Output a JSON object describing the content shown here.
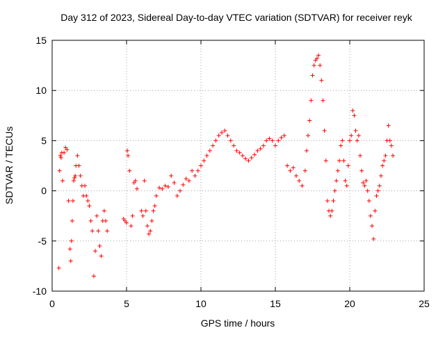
{
  "chart_data": {
    "type": "scatter",
    "title": "Day 312 of 2023, Sidereal Day-to-day VTEC variation (SDTVAR) for receiver reyk",
    "xlabel": "GPS time / hours",
    "ylabel": "SDTVAR / TECUs",
    "xlim": [
      0,
      25
    ],
    "ylim": [
      -10,
      15
    ],
    "xticks": [
      0,
      5,
      10,
      15,
      20,
      25
    ],
    "yticks": [
      -10,
      -5,
      0,
      5,
      10,
      15
    ],
    "xtick_labels": [
      "0",
      "5",
      "10",
      "15",
      "20",
      "25"
    ],
    "ytick_labels": [
      "-10",
      "-5",
      "0",
      "5",
      "10",
      "15"
    ],
    "grid": true,
    "marker": "+",
    "marker_color": "#ff0000",
    "series": [
      {
        "name": "SDTVAR",
        "x": [
          0.45,
          0.5,
          0.55,
          0.6,
          0.65,
          0.7,
          0.8,
          0.9,
          1.0,
          1.1,
          1.2,
          1.25,
          1.3,
          1.35,
          1.4,
          1.45,
          1.5,
          1.55,
          1.6,
          1.7,
          1.8,
          1.9,
          2.0,
          2.1,
          2.2,
          2.3,
          2.4,
          2.5,
          2.6,
          2.7,
          2.8,
          2.9,
          3.0,
          3.1,
          3.2,
          3.3,
          3.4,
          3.5,
          3.6,
          3.7,
          4.8,
          4.9,
          5.0,
          5.05,
          5.1,
          5.2,
          5.3,
          5.4,
          5.5,
          5.6,
          5.7,
          6.0,
          6.1,
          6.2,
          6.3,
          6.4,
          6.5,
          6.6,
          6.7,
          6.8,
          6.9,
          7.0,
          7.2,
          7.4,
          7.6,
          7.8,
          8.0,
          8.2,
          8.4,
          8.6,
          8.8,
          9.0,
          9.2,
          9.4,
          9.6,
          9.8,
          10.0,
          10.2,
          10.4,
          10.6,
          10.8,
          11.0,
          11.2,
          11.4,
          11.6,
          11.8,
          12.0,
          12.2,
          12.4,
          12.6,
          12.8,
          13.0,
          13.2,
          13.4,
          13.6,
          13.8,
          14.0,
          14.2,
          14.4,
          14.6,
          14.8,
          15.0,
          15.2,
          15.4,
          15.6,
          15.8,
          16.0,
          16.2,
          16.4,
          16.6,
          16.8,
          17.0,
          17.1,
          17.2,
          17.3,
          17.4,
          17.5,
          17.6,
          17.7,
          17.8,
          17.9,
          18.0,
          18.1,
          18.2,
          18.3,
          18.4,
          18.5,
          18.6,
          18.7,
          18.8,
          18.9,
          19.0,
          19.1,
          19.2,
          19.3,
          19.4,
          19.5,
          19.6,
          19.7,
          19.8,
          19.9,
          20.0,
          20.1,
          20.2,
          20.3,
          20.4,
          20.5,
          20.6,
          20.7,
          20.8,
          20.9,
          21.0,
          21.1,
          21.2,
          21.3,
          21.4,
          21.5,
          21.6,
          21.7,
          21.8,
          21.9,
          22.0,
          22.1,
          22.2,
          22.3,
          22.4,
          22.5,
          22.6,
          22.7,
          22.8,
          22.9
        ],
        "y": [
          -7.7,
          2.0,
          3.5,
          3.3,
          3.8,
          1.0,
          3.8,
          4.3,
          4.1,
          -1.0,
          -5.8,
          -7.0,
          -5.0,
          -3.0,
          -1.0,
          1.0,
          1.3,
          1.5,
          2.5,
          3.5,
          2.5,
          1.5,
          0.5,
          -0.5,
          0.5,
          -0.5,
          -1.0,
          -1.5,
          -3.0,
          -4.0,
          -8.5,
          -6.0,
          -2.5,
          -4.0,
          -5.5,
          -6.5,
          -3.0,
          -2.0,
          -3.0,
          -4.0,
          -2.8,
          -3.0,
          -3.2,
          4.0,
          3.5,
          2.0,
          -3.5,
          -2.5,
          0.8,
          1.0,
          0.2,
          -2.0,
          -2.5,
          1.0,
          -2.0,
          -3.5,
          -4.3,
          -4.0,
          -3.0,
          -2.0,
          -1.5,
          -0.5,
          0.3,
          0.2,
          0.5,
          0.4,
          1.5,
          0.8,
          -0.5,
          0.0,
          0.6,
          1.2,
          1.0,
          2.0,
          1.5,
          2.0,
          2.5,
          3.0,
          3.5,
          4.0,
          4.5,
          5.0,
          5.5,
          5.8,
          6.0,
          5.5,
          5.0,
          4.5,
          4.0,
          3.8,
          3.5,
          3.2,
          3.0,
          3.3,
          3.6,
          4.0,
          4.2,
          4.5,
          5.0,
          5.2,
          5.0,
          4.5,
          5.0,
          5.3,
          5.5,
          2.5,
          2.0,
          2.3,
          1.5,
          1.0,
          0.5,
          2.0,
          4.0,
          5.5,
          7.0,
          9.0,
          11.5,
          12.5,
          13.0,
          13.2,
          13.5,
          12.5,
          11.0,
          9.0,
          6.0,
          3.0,
          -1.0,
          -2.0,
          -2.5,
          -2.0,
          -1.0,
          0.0,
          1.0,
          2.0,
          3.0,
          4.5,
          5.0,
          3.0,
          1.0,
          0.5,
          2.5,
          5.0,
          5.5,
          8.0,
          7.5,
          6.0,
          5.0,
          5.5,
          3.5,
          2.0,
          0.8,
          0.5,
          1.0,
          0.0,
          -1.0,
          -2.5,
          -3.5,
          -4.8,
          -2.0,
          -0.5,
          0.0,
          0.5,
          1.5,
          2.5,
          3.0,
          3.5,
          5.0,
          6.5,
          5.0,
          4.5,
          3.5
        ]
      }
    ]
  }
}
